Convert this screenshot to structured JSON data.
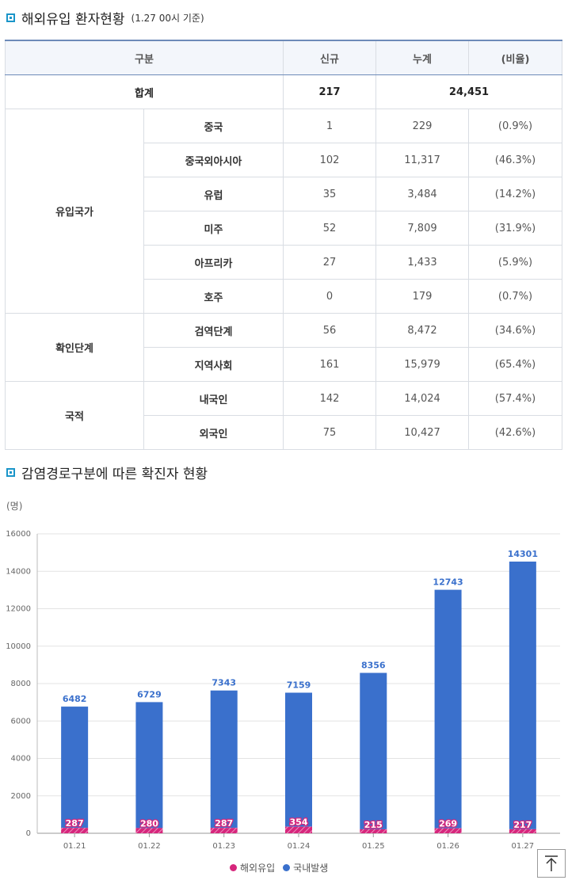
{
  "section1": {
    "title": "해외유입 환자현황",
    "note": "(1.27 00시 기준)"
  },
  "table": {
    "headers": [
      "구분",
      "신규",
      "누계",
      "(비율)"
    ],
    "total": {
      "label": "합계",
      "new": "217",
      "cumulative": "24,451"
    },
    "groups": [
      {
        "name": "유입국가",
        "rows": [
          {
            "label": "중국",
            "new": "1",
            "cumulative": "229",
            "ratio": "(0.9%)"
          },
          {
            "label": "중국외아시아",
            "new": "102",
            "cumulative": "11,317",
            "ratio": "(46.3%)"
          },
          {
            "label": "유럽",
            "new": "35",
            "cumulative": "3,484",
            "ratio": "(14.2%)"
          },
          {
            "label": "미주",
            "new": "52",
            "cumulative": "7,809",
            "ratio": "(31.9%)"
          },
          {
            "label": "아프리카",
            "new": "27",
            "cumulative": "1,433",
            "ratio": "(5.9%)"
          },
          {
            "label": "호주",
            "new": "0",
            "cumulative": "179",
            "ratio": "(0.7%)"
          }
        ]
      },
      {
        "name": "확인단계",
        "rows": [
          {
            "label": "검역단계",
            "new": "56",
            "cumulative": "8,472",
            "ratio": "(34.6%)"
          },
          {
            "label": "지역사회",
            "new": "161",
            "cumulative": "15,979",
            "ratio": "(65.4%)"
          }
        ]
      },
      {
        "name": "국적",
        "rows": [
          {
            "label": "내국인",
            "new": "142",
            "cumulative": "14,024",
            "ratio": "(57.4%)"
          },
          {
            "label": "외국인",
            "new": "75",
            "cumulative": "10,427",
            "ratio": "(42.6%)"
          }
        ]
      }
    ]
  },
  "section2": {
    "title": "감염경로구분에 따른 확진자 현황",
    "unit": "(명)"
  },
  "chart_data": {
    "type": "bar",
    "stacked": true,
    "categories": [
      "01.21",
      "01.22",
      "01.23",
      "01.24",
      "01.25",
      "01.26",
      "01.27"
    ],
    "series": [
      {
        "name": "해외유입",
        "values": [
          287,
          280,
          287,
          354,
          215,
          269,
          217
        ],
        "color": "#d6267c"
      },
      {
        "name": "국내발생",
        "values": [
          6482,
          6729,
          7343,
          7159,
          8356,
          12743,
          14301
        ],
        "color": "#3a70cc"
      }
    ],
    "ylim": [
      0,
      16000
    ],
    "yticks": [
      0,
      2000,
      4000,
      6000,
      8000,
      10000,
      12000,
      14000,
      16000
    ],
    "grid": true,
    "legend": "bottom"
  },
  "icons": {
    "top_button": "arrow-up-to-top-icon"
  }
}
